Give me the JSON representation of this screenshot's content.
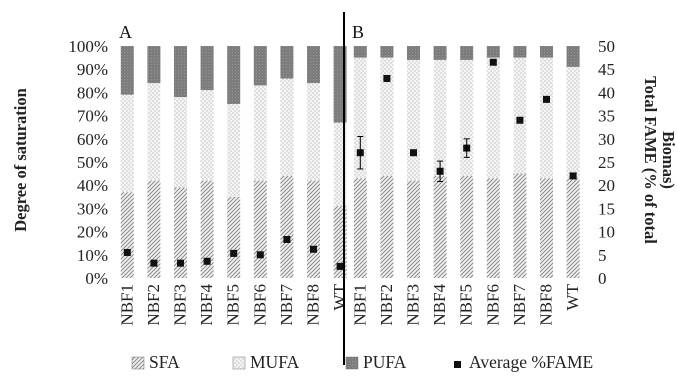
{
  "chart_data": {
    "type": "bar",
    "subtype": "stacked-100-percent with overlaid scatter on secondary axis",
    "panels": [
      {
        "label": "A",
        "categories": [
          "NBF1",
          "NBF2",
          "NBF3",
          "NBF4",
          "NBF5",
          "NBF6",
          "NBF7",
          "NBF8",
          "WT"
        ],
        "series": [
          {
            "name": "SFA",
            "values": [
              37,
              42,
              39,
              42,
              35,
              42,
              44,
              42,
              31
            ]
          },
          {
            "name": "MUFA",
            "values": [
              42,
              42,
              39,
              39,
              40,
              41,
              42,
              42,
              36
            ]
          },
          {
            "name": "PUFA",
            "values": [
              21,
              16,
              22,
              19,
              25,
              17,
              14,
              16,
              33
            ]
          }
        ],
        "average_fame": [
          5.5,
          3.2,
          3.2,
          3.6,
          5.3,
          5.0,
          8.3,
          6.2,
          2.5
        ]
      },
      {
        "label": "B",
        "categories": [
          "NBF1",
          "NBF2",
          "NBF3",
          "NBF4",
          "NBF5",
          "NBF6",
          "NBF7",
          "NBF8",
          "WT"
        ],
        "series": [
          {
            "name": "SFA",
            "values": [
              43,
              44,
              42,
              44,
              44,
              43,
              45,
              43,
              43
            ]
          },
          {
            "name": "MUFA",
            "values": [
              52,
              51,
              52,
              50,
              50,
              52,
              50,
              52,
              48
            ]
          },
          {
            "name": "PUFA",
            "values": [
              5,
              5,
              6,
              6,
              6,
              5,
              5,
              5,
              9
            ]
          }
        ],
        "average_fame": [
          27.0,
          43.0,
          27.0,
          23.0,
          28.0,
          46.5,
          34.0,
          38.5,
          22.0
        ]
      }
    ],
    "y_left": {
      "label": "Degree of saturation",
      "range": [
        0,
        100
      ],
      "ticks": [
        "0%",
        "10%",
        "20%",
        "30%",
        "40%",
        "50%",
        "60%",
        "70%",
        "80%",
        "90%",
        "100%"
      ]
    },
    "y_right": {
      "label": "Total FAME (% of total Biomas)",
      "range": [
        0,
        50
      ],
      "ticks": [
        "0",
        "5",
        "10",
        "15",
        "20",
        "25",
        "30",
        "35",
        "40",
        "45",
        "50"
      ]
    },
    "legend": {
      "placement": "bottom",
      "items": [
        {
          "name": "SFA",
          "pattern": "diagonal-hatch"
        },
        {
          "name": "MUFA",
          "pattern": "dots"
        },
        {
          "name": "PUFA",
          "pattern": "dark-gray"
        },
        {
          "name": "Average %FAME",
          "marker": "black-square"
        }
      ]
    },
    "grid": false
  },
  "colors": {
    "sfa": "#bdbdbd",
    "mufa": "#e8e8e8",
    "pufa": "#808080",
    "marker": "#111111",
    "axis": "#000000"
  }
}
